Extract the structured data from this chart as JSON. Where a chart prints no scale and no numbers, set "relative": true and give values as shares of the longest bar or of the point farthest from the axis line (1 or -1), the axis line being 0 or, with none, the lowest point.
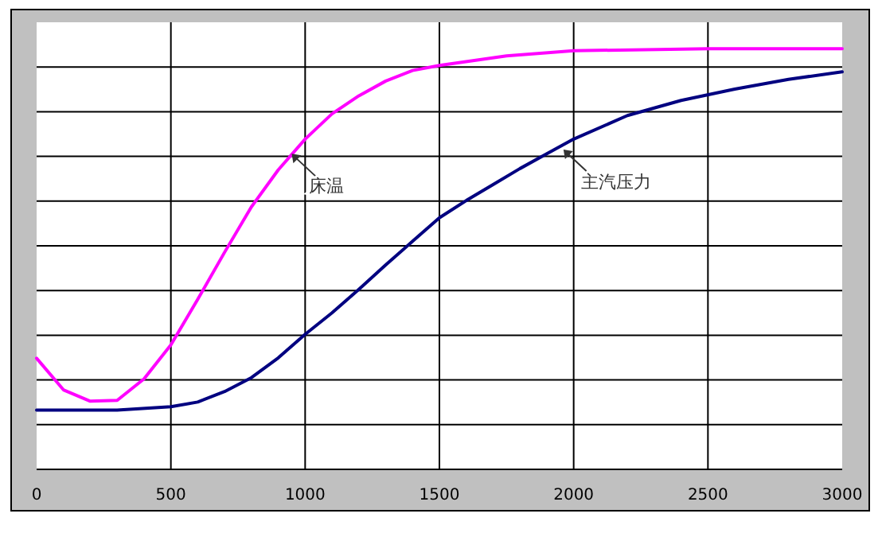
{
  "chart_data": {
    "type": "line",
    "relative": true,
    "xlim": [
      0,
      3000
    ],
    "xticks": [
      0,
      500,
      1000,
      1500,
      2000,
      2500,
      3000
    ],
    "grid": true,
    "tick_labels": "x",
    "series": [
      {
        "color": "#ff00ff",
        "x": [
          0,
          100,
          200,
          300,
          400,
          500,
          600,
          700,
          800,
          900,
          1000,
          1100,
          1200,
          1300,
          1400,
          1500,
          1750,
          2000,
          2500,
          3000
        ],
        "values": [
          0.264,
          0.189,
          0.162,
          0.164,
          0.215,
          0.296,
          0.404,
          0.516,
          0.624,
          0.712,
          0.785,
          0.845,
          0.888,
          0.923,
          0.948,
          0.96,
          0.983,
          0.995,
          1,
          1
        ]
      },
      {
        "color": "#000080",
        "x": [
          0,
          300,
          500,
          600,
          700,
          800,
          900,
          1000,
          1100,
          1200,
          1300,
          1400,
          1500,
          1600,
          1700,
          1800,
          1900,
          2000,
          2200,
          2400,
          2600,
          2800,
          3000
        ],
        "values": [
          0.141,
          0.141,
          0.149,
          0.16,
          0.185,
          0.218,
          0.265,
          0.321,
          0.372,
          0.428,
          0.486,
          0.542,
          0.598,
          0.639,
          0.677,
          0.715,
          0.75,
          0.785,
          0.841,
          0.877,
          0.904,
          0.927,
          0.945
        ]
      }
    ],
    "annotations": [
      {
        "text": "床温",
        "x": 950,
        "y": 0.75
      },
      {
        "text": "主汽压力",
        "x": 1962,
        "y": 0.76
      }
    ]
  }
}
